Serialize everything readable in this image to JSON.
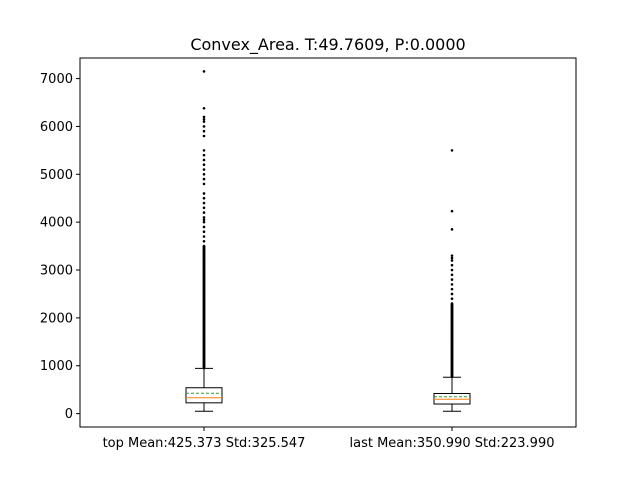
{
  "chart_data": {
    "type": "box",
    "title": "Convex_Area. T:49.7609, P:0.0000",
    "xlabel": "",
    "ylabel": "",
    "ylim": [
      -280,
      7430
    ],
    "yticks": [
      0,
      1000,
      2000,
      3000,
      4000,
      5000,
      6000,
      7000
    ],
    "grid": false,
    "categories": [
      "top Mean:425.373 Std:325.547",
      "last Mean:350.990 Std:223.990"
    ],
    "series": [
      {
        "category": "top Mean:425.373 Std:325.547",
        "whisker_low": 50,
        "q1": 225,
        "median": 330,
        "mean": 425,
        "q3": 540,
        "whisker_high": 945,
        "outlier_range": [
          950,
          3500
        ],
        "outliers": [
          3600,
          3700,
          3800,
          3900,
          4000,
          4050,
          4100,
          4200,
          4300,
          4400,
          4500,
          4600,
          4800,
          4900,
          5000,
          5100,
          5200,
          5300,
          5400,
          5500,
          5800,
          5900,
          6000,
          6100,
          6150,
          6200,
          6380,
          7150
        ]
      },
      {
        "category": "last Mean:350.990 Std:223.990",
        "whisker_low": 50,
        "q1": 200,
        "median": 300,
        "mean": 351,
        "q3": 420,
        "whisker_high": 760,
        "outlier_range": [
          770,
          2300
        ],
        "outliers": [
          2400,
          2500,
          2600,
          2700,
          2800,
          2900,
          3000,
          3100,
          3200,
          3250,
          3300,
          3850,
          4230,
          5500
        ]
      }
    ],
    "colors": {
      "box": "#000000",
      "median": "#ff7f0e",
      "mean": "#2ca02c",
      "outlier": "#000000"
    }
  }
}
